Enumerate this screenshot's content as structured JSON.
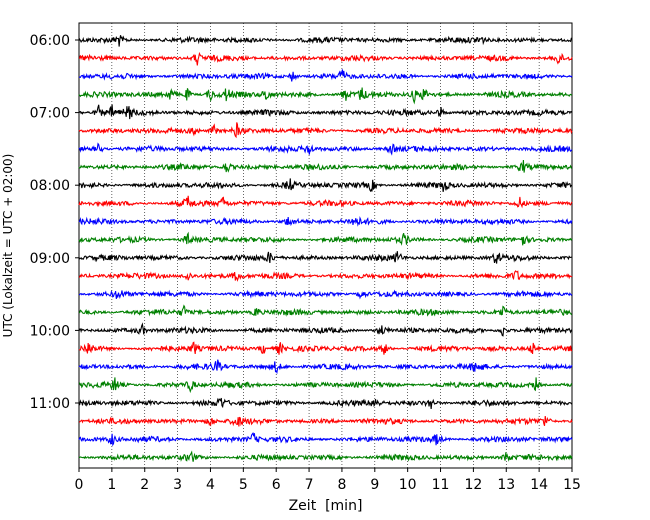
{
  "chart_data": {
    "type": "line",
    "title": "",
    "xlabel": "Zeit  [min]",
    "ylabel": "UTC (Lokalzeit = UTC + 02:00)",
    "xlim": [
      0,
      15
    ],
    "x_ticks": [
      "0",
      "1",
      "2",
      "3",
      "4",
      "5",
      "6",
      "7",
      "8",
      "9",
      "10",
      "11",
      "12",
      "13",
      "14",
      "15"
    ],
    "y_tick_labels": [
      "06:00",
      "07:00",
      "08:00",
      "09:00",
      "10:00",
      "11:00"
    ],
    "traces_per_hour": 4,
    "trace_minutes": 15,
    "grid": "vertical-dotted",
    "colors": [
      "#000000",
      "#ff0000",
      "#0000ff",
      "#008000"
    ],
    "traces": [
      {
        "start": "06:00",
        "events": [
          1.2,
          12.2
        ]
      },
      {
        "start": "06:15",
        "events": [
          3.6,
          14.6
        ]
      },
      {
        "start": "06:30",
        "events": [
          6.5,
          8.0
        ]
      },
      {
        "start": "06:45",
        "events": [
          2.8,
          3.3,
          4.0,
          4.5,
          5.7,
          8.1,
          8.6,
          10.2,
          10.5
        ]
      },
      {
        "start": "07:00",
        "events": [
          0.6,
          1.0,
          1.5,
          11.0
        ]
      },
      {
        "start": "07:15",
        "events": [
          3.5,
          4.1,
          4.8
        ]
      },
      {
        "start": "07:30",
        "events": [
          0.6,
          7.0,
          9.5
        ]
      },
      {
        "start": "07:45",
        "events": [
          4.5,
          13.5
        ]
      },
      {
        "start": "08:00",
        "events": [
          6.4,
          8.9,
          11.1
        ]
      },
      {
        "start": "08:15",
        "events": [
          3.3,
          4.4,
          13.4
        ]
      },
      {
        "start": "08:30",
        "events": [
          6.4,
          8.4
        ]
      },
      {
        "start": "08:45",
        "events": [
          3.3,
          9.9,
          13.5
        ]
      },
      {
        "start": "09:00",
        "events": [
          5.8,
          9.7,
          12.7
        ]
      },
      {
        "start": "09:15",
        "events": [
          3.3,
          4.8,
          13.3
        ]
      },
      {
        "start": "09:30",
        "events": [
          1.2,
          8.6
        ]
      },
      {
        "start": "09:45",
        "events": [
          3.2,
          5.4,
          12.9
        ]
      },
      {
        "start": "10:00",
        "events": [
          1.9,
          9.2,
          12.9
        ]
      },
      {
        "start": "10:15",
        "events": [
          0.3,
          3.5,
          5.6,
          6.1,
          9.3,
          13.8
        ]
      },
      {
        "start": "10:30",
        "events": [
          4.2,
          6.0,
          12.1
        ]
      },
      {
        "start": "10:45",
        "events": [
          1.1,
          3.4,
          13.9
        ]
      },
      {
        "start": "11:00",
        "events": [
          4.3,
          9.0,
          10.7
        ]
      },
      {
        "start": "11:15",
        "events": [
          4.0,
          4.8,
          14.2
        ]
      },
      {
        "start": "11:30",
        "events": [
          1.0,
          5.3,
          10.9
        ]
      },
      {
        "start": "11:45",
        "events": [
          3.4,
          13.0
        ]
      }
    ]
  }
}
